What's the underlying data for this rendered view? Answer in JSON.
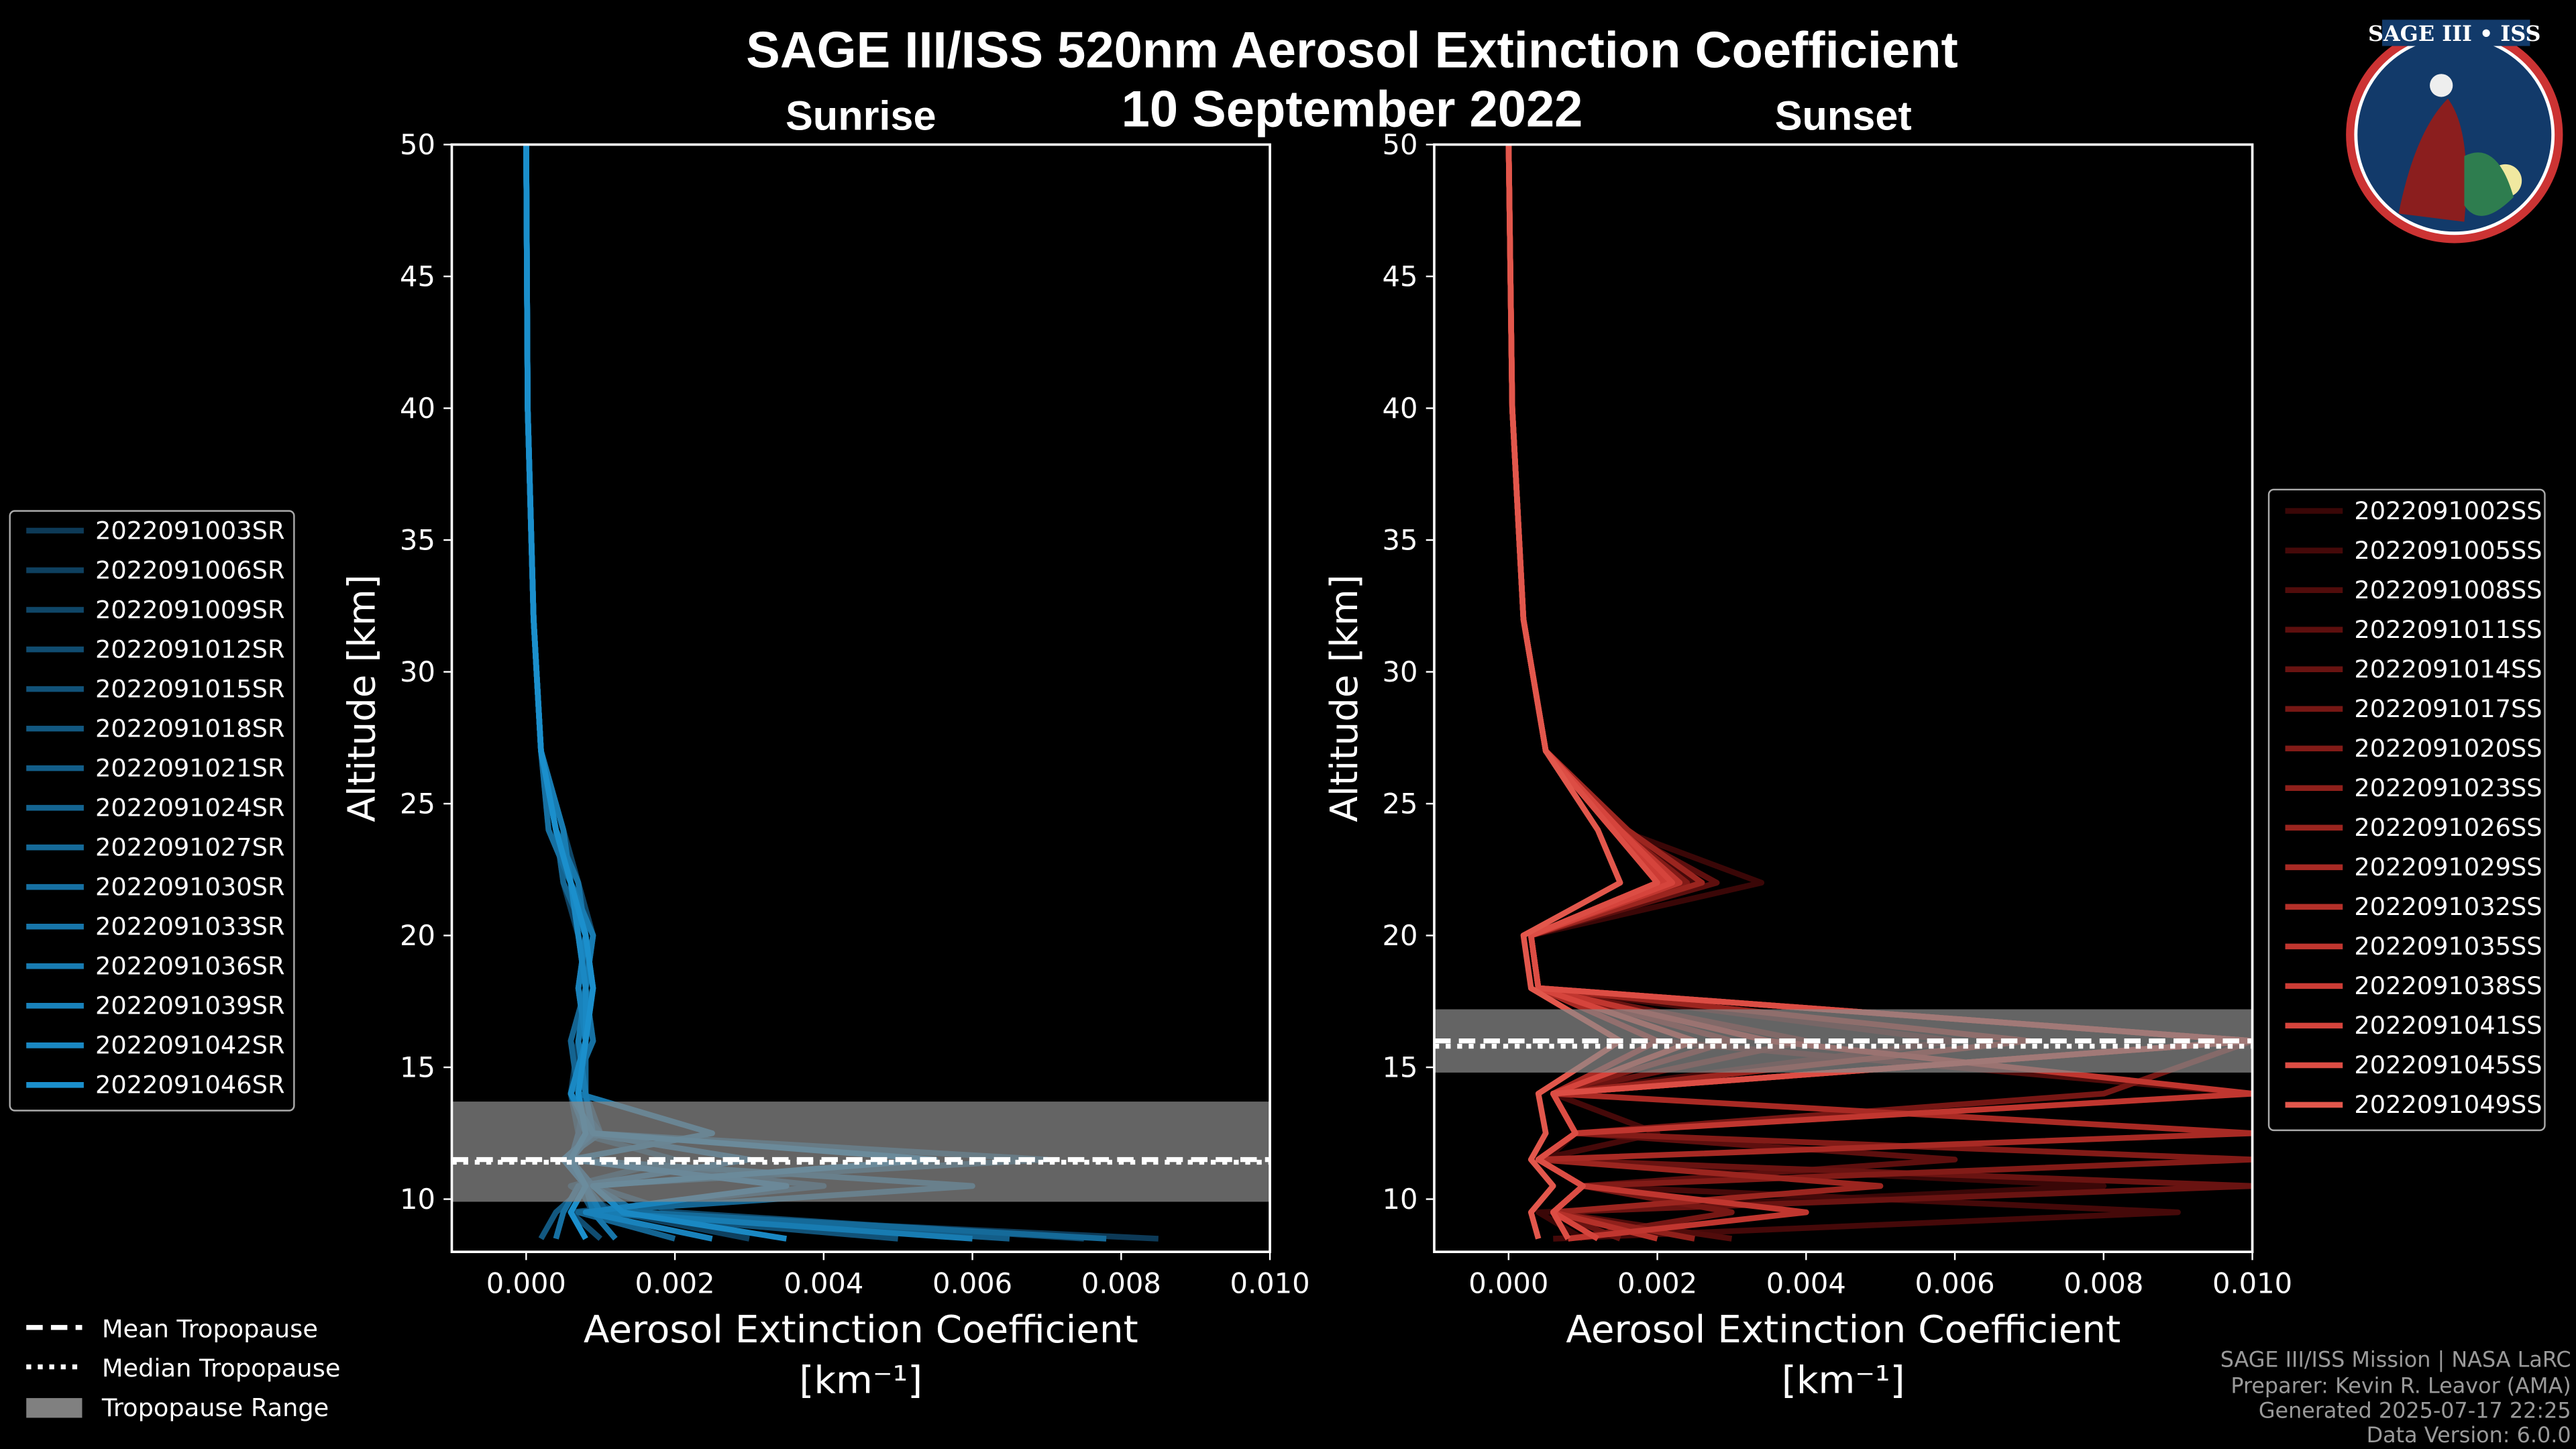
{
  "title": "SAGE III/ISS 520nm Aerosol Extinction Coefficient",
  "date": "10 September 2022",
  "footer": [
    "SAGE III/ISS Mission | NASA LaRC",
    "Preparer: Kevin R. Leavor (AMA)",
    "Generated 2025-07-17 22:25",
    "Data Version: 6.0.0"
  ],
  "logo_text": "SAGE III • ISS",
  "tropo_legend": [
    "Mean Tropopause",
    "Median Tropopause",
    "Tropopause Range"
  ],
  "chart_data": [
    {
      "type": "line",
      "title": "Sunrise",
      "xlabel": "Aerosol Extinction Coefficient",
      "xunit": "[km⁻¹]",
      "ylabel": "Altitude [km]",
      "xlim": [
        -0.001,
        0.01
      ],
      "ylim": [
        8,
        50
      ],
      "xticks": [
        "0.000",
        "0.002",
        "0.004",
        "0.006",
        "0.008",
        "0.010"
      ],
      "yticks": [
        "10",
        "15",
        "20",
        "25",
        "30",
        "35",
        "40",
        "45",
        "50"
      ],
      "legend": "left",
      "tropopause": {
        "mean": 11.5,
        "median": 11.4,
        "range": [
          9.9,
          13.7
        ]
      },
      "altitude": [
        8.5,
        9.5,
        10.5,
        11.5,
        12.5,
        14,
        16,
        18,
        20,
        22,
        24,
        27,
        32,
        40,
        50
      ],
      "series": [
        {
          "name": "2022091003SR",
          "color": "#0d3a57",
          "values": [
            0.0085,
            0.001,
            0.0008,
            0.0006,
            0.0009,
            0.0007,
            0.0008,
            0.0008,
            0.0008,
            0.0006,
            0.0004,
            0.0002,
            0.0001,
            2e-05,
            0
          ]
        },
        {
          "name": "2022091006SR",
          "color": "#0e405f",
          "values": [
            0.003,
            0.0012,
            0.0006,
            0.002,
            0.0007,
            0.0006,
            0.0007,
            0.0009,
            0.0007,
            0.0005,
            0.0004,
            0.0002,
            0.0001,
            2e-05,
            0
          ]
        },
        {
          "name": "2022091009SR",
          "color": "#0f4667",
          "values": [
            0.0075,
            0.002,
            0.0009,
            0.0005,
            0.001,
            0.0008,
            0.0006,
            0.0008,
            0.0009,
            0.0007,
            0.0005,
            0.0002,
            0.0001,
            2e-05,
            0
          ]
        },
        {
          "name": "2022091012SR",
          "color": "#104c70",
          "values": [
            0.001,
            0.0006,
            0.004,
            0.0006,
            0.0008,
            0.0007,
            0.0008,
            0.0007,
            0.0008,
            0.0006,
            0.0003,
            0.0002,
            0.0001,
            2e-05,
            0
          ]
        },
        {
          "name": "2022091015SR",
          "color": "#115278",
          "values": [
            0.005,
            0.0009,
            0.0007,
            0.007,
            0.0009,
            0.0006,
            0.0009,
            0.0008,
            0.0007,
            0.0006,
            0.0004,
            0.0002,
            0.0001,
            2e-05,
            0
          ]
        },
        {
          "name": "2022091018SR",
          "color": "#125880",
          "values": [
            0.0002,
            0.0004,
            0.0008,
            0.0006,
            0.0007,
            0.0008,
            0.0007,
            0.0009,
            0.0008,
            0.0007,
            0.0004,
            0.0002,
            0.0001,
            2e-05,
            0
          ]
        },
        {
          "name": "2022091021SR",
          "color": "#135e89",
          "values": [
            0.0065,
            0.0011,
            0.0008,
            0.0005,
            0.001,
            0.0006,
            0.0008,
            0.0008,
            0.0009,
            0.0006,
            0.0005,
            0.0002,
            0.0001,
            2e-05,
            0
          ]
        },
        {
          "name": "2022091024SR",
          "color": "#146491",
          "values": [
            0.002,
            0.0007,
            0.006,
            0.0006,
            0.0008,
            0.0007,
            0.0006,
            0.0008,
            0.0008,
            0.0005,
            0.0004,
            0.0002,
            0.0001,
            2e-05,
            0
          ]
        },
        {
          "name": "2022091027SR",
          "color": "#156a99",
          "values": [
            0.0078,
            0.0015,
            0.0009,
            0.0006,
            0.0009,
            0.0008,
            0.0008,
            0.0007,
            0.0008,
            0.0006,
            0.0004,
            0.0002,
            0.0001,
            2e-05,
            0
          ]
        },
        {
          "name": "2022091030SR",
          "color": "#1670a2",
          "values": [
            0.0004,
            0.0005,
            0.0007,
            0.003,
            0.0008,
            0.0006,
            0.0009,
            0.0008,
            0.0007,
            0.0006,
            0.0003,
            0.0002,
            0.0001,
            2e-05,
            0
          ]
        },
        {
          "name": "2022091033SR",
          "color": "#1776aa",
          "values": [
            0.0012,
            0.0009,
            0.0008,
            0.0006,
            0.0025,
            0.0007,
            0.0008,
            0.0009,
            0.0008,
            0.0007,
            0.0004,
            0.0002,
            0.0001,
            2e-05,
            0
          ]
        },
        {
          "name": "2022091036SR",
          "color": "#187cb2",
          "values": [
            0.006,
            0.001,
            0.0008,
            0.0005,
            0.0009,
            0.0008,
            0.0007,
            0.0008,
            0.0009,
            0.0006,
            0.0005,
            0.0002,
            0.0001,
            2e-05,
            0
          ]
        },
        {
          "name": "2022091039SR",
          "color": "#1982bb",
          "values": [
            0.0025,
            0.0008,
            0.0035,
            0.0006,
            0.0008,
            0.0007,
            0.0008,
            0.0007,
            0.0008,
            0.0006,
            0.0004,
            0.0002,
            0.0001,
            2e-05,
            0
          ]
        },
        {
          "name": "2022091042SR",
          "color": "#1a88c3",
          "values": [
            0.0035,
            0.0013,
            0.0009,
            0.0055,
            0.0009,
            0.0006,
            0.0008,
            0.0008,
            0.0007,
            0.0006,
            0.0004,
            0.0002,
            0.0001,
            2e-05,
            0
          ]
        },
        {
          "name": "2022091046SR",
          "color": "#1b8fcc",
          "values": [
            0.0008,
            0.0006,
            0.0008,
            0.0006,
            0.0008,
            0.0007,
            0.0008,
            0.0009,
            0.0008,
            0.0006,
            0.0004,
            0.0002,
            0.0001,
            2e-05,
            0
          ]
        }
      ]
    },
    {
      "type": "line",
      "title": "Sunset",
      "xlabel": "Aerosol Extinction Coefficient",
      "xunit": "[km⁻¹]",
      "ylabel": "Altitude [km]",
      "xlim": [
        -0.001,
        0.01
      ],
      "ylim": [
        8,
        50
      ],
      "xticks": [
        "0.000",
        "0.002",
        "0.004",
        "0.006",
        "0.008",
        "0.010"
      ],
      "yticks": [
        "10",
        "15",
        "20",
        "25",
        "30",
        "35",
        "40",
        "45",
        "50"
      ],
      "legend": "right",
      "tropopause": {
        "mean": 16.0,
        "median": 15.8,
        "range": [
          14.8,
          17.2
        ]
      },
      "altitude": [
        8.5,
        9.5,
        10.5,
        11.5,
        12.5,
        14,
        16,
        18,
        20,
        22,
        24,
        27,
        32,
        40,
        50
      ],
      "series": [
        {
          "name": "2022091002SS",
          "color": "#3a0707",
          "values": [
            0.001,
            0.0004,
            0.008,
            0.0005,
            0.0009,
            0.0006,
            0.01,
            0.0004,
            0.0003,
            0.0034,
            0.0015,
            0.0005,
            0.0002,
            5e-05,
            0
          ]
        },
        {
          "name": "2022091005SS",
          "color": "#450909",
          "values": [
            0.0006,
            0.009,
            0.001,
            0.0004,
            0.002,
            0.0006,
            0.006,
            0.0004,
            0.0003,
            0.0025,
            0.0016,
            0.0005,
            0.0002,
            5e-05,
            0
          ]
        },
        {
          "name": "2022091008SS",
          "color": "#510c0b",
          "values": [
            0.003,
            0.0006,
            0.001,
            0.0004,
            0.0009,
            0.01,
            0.002,
            0.0004,
            0.0003,
            0.0022,
            0.0014,
            0.0005,
            0.0002,
            5e-05,
            0
          ]
        },
        {
          "name": "2022091011SS",
          "color": "#5d0f0e",
          "values": [
            0.0008,
            0.0006,
            0.001,
            0.006,
            0.0009,
            0.0006,
            0.01,
            0.0004,
            0.0003,
            0.0028,
            0.0015,
            0.0005,
            0.0002,
            5e-05,
            0
          ]
        },
        {
          "name": "2022091014SS",
          "color": "#691311",
          "values": [
            0.0015,
            0.0006,
            0.01,
            0.0004,
            0.0009,
            0.0006,
            0.004,
            0.0004,
            0.0003,
            0.0022,
            0.0016,
            0.0005,
            0.0002,
            5e-05,
            0
          ]
        },
        {
          "name": "2022091017SS",
          "color": "#761714",
          "values": [
            0.0008,
            0.003,
            0.001,
            0.0004,
            0.0009,
            0.008,
            0.01,
            0.0004,
            0.0003,
            0.002,
            0.0014,
            0.0005,
            0.0002,
            5e-05,
            0
          ]
        },
        {
          "name": "2022091020SS",
          "color": "#821b17",
          "values": [
            0.0008,
            0.0006,
            0.001,
            0.01,
            0.0009,
            0.0006,
            0.003,
            0.0004,
            0.0003,
            0.0024,
            0.0015,
            0.0005,
            0.0002,
            5e-05,
            0
          ]
        },
        {
          "name": "2022091023SS",
          "color": "#8f201b",
          "values": [
            0.0025,
            0.0006,
            0.001,
            0.0004,
            0.0009,
            0.0006,
            0.01,
            0.0004,
            0.0003,
            0.0021,
            0.0015,
            0.0005,
            0.0002,
            5e-05,
            0
          ]
        },
        {
          "name": "2022091026SS",
          "color": "#9b251f",
          "values": [
            0.0008,
            0.0006,
            0.005,
            0.0004,
            0.0009,
            0.0006,
            0.007,
            0.0004,
            0.0003,
            0.0026,
            0.0016,
            0.0005,
            0.0002,
            5e-05,
            0
          ]
        },
        {
          "name": "2022091029SS",
          "color": "#a82a24",
          "values": [
            0.0008,
            0.0006,
            0.001,
            0.0004,
            0.01,
            0.0006,
            0.002,
            0.0004,
            0.0003,
            0.0022,
            0.0014,
            0.0005,
            0.0002,
            5e-05,
            0
          ]
        },
        {
          "name": "2022091032SS",
          "color": "#b43029",
          "values": [
            0.002,
            0.0006,
            0.001,
            0.0004,
            0.0009,
            0.0006,
            0.01,
            0.0004,
            0.0003,
            0.002,
            0.0015,
            0.0005,
            0.0002,
            5e-05,
            0
          ]
        },
        {
          "name": "2022091035SS",
          "color": "#c0362f",
          "values": [
            0.0008,
            0.004,
            0.001,
            0.0004,
            0.0009,
            0.01,
            0.0035,
            0.0004,
            0.0003,
            0.0023,
            0.0015,
            0.0005,
            0.0002,
            5e-05,
            0
          ]
        },
        {
          "name": "2022091038SS",
          "color": "#cc3c35",
          "values": [
            0.0008,
            0.0006,
            0.001,
            0.0004,
            0.0009,
            0.0006,
            0.01,
            0.0004,
            0.0003,
            0.0021,
            0.0014,
            0.0005,
            0.0002,
            5e-05,
            0
          ]
        },
        {
          "name": "2022091041SS",
          "color": "#d5443c",
          "values": [
            0.0012,
            0.0006,
            0.001,
            0.0004,
            0.0009,
            0.0006,
            0.0025,
            0.0004,
            0.0003,
            0.0022,
            0.0015,
            0.0005,
            0.0002,
            5e-05,
            0
          ]
        },
        {
          "name": "2022091045SS",
          "color": "#dc4d44",
          "values": [
            0.0008,
            0.0006,
            0.001,
            0.0004,
            0.0009,
            0.0006,
            0.01,
            0.0004,
            0.0003,
            0.002,
            0.0014,
            0.0005,
            0.0002,
            5e-05,
            0
          ]
        },
        {
          "name": "2022091049SS",
          "color": "#e2574c",
          "values": [
            0.0004,
            0.0003,
            0.0006,
            0.0003,
            0.0005,
            0.0004,
            0.0015,
            0.0003,
            0.0002,
            0.0015,
            0.0012,
            0.0005,
            0.0002,
            5e-05,
            0
          ]
        }
      ]
    }
  ]
}
